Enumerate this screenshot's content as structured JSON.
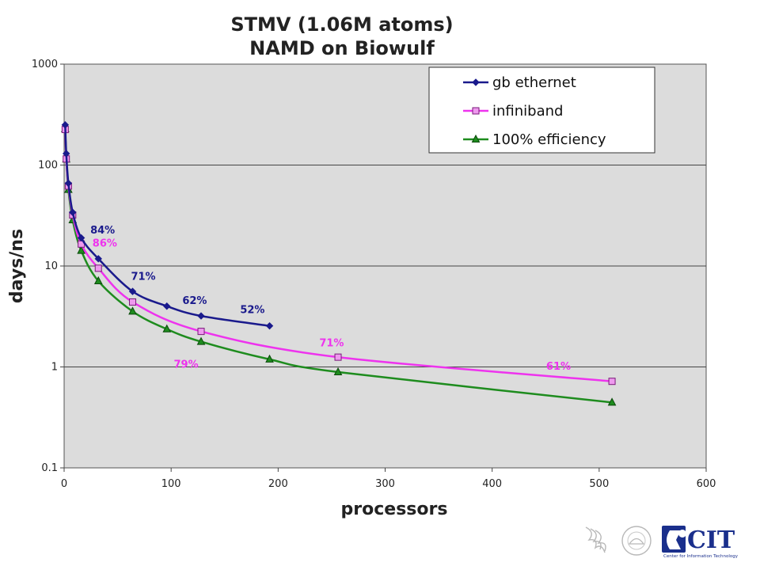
{
  "chart_data": {
    "type": "line",
    "title_line1": "STMV (1.06M atoms)",
    "title_line2": "NAMD on Biowulf",
    "xlabel": "processors",
    "ylabel": "days/ns",
    "xlim": [
      0,
      600
    ],
    "ylim": [
      0.1,
      1000
    ],
    "yscale": "log",
    "x_ticks": [
      "0",
      "100",
      "200",
      "300",
      "400",
      "500",
      "600"
    ],
    "y_ticks": [
      "0.1",
      "1",
      "10",
      "100",
      "1000"
    ],
    "grid": "horizontal",
    "legend_position": "top-right",
    "series": [
      {
        "name": "gb ethernet",
        "color": "#1a1a8c",
        "marker": "diamond",
        "x": [
          1,
          2,
          4,
          8,
          16,
          32,
          64,
          96,
          128,
          192
        ],
        "y": [
          250,
          130,
          66,
          34,
          19,
          11.8,
          5.6,
          4.0,
          3.2,
          2.55
        ]
      },
      {
        "name": "infiniband",
        "color": "#ee33ee",
        "marker": "square",
        "x": [
          1,
          2,
          4,
          8,
          16,
          32,
          64,
          128,
          256,
          512
        ],
        "y": [
          225,
          115,
          62,
          32,
          16.5,
          9.5,
          4.4,
          2.25,
          1.25,
          0.72
        ]
      },
      {
        "name": "100% efficiency",
        "color": "#1e8c1e",
        "marker": "triangle",
        "x": [
          1,
          2,
          4,
          8,
          16,
          32,
          64,
          96,
          128,
          192,
          256,
          512
        ],
        "y": [
          228,
          114,
          57,
          28.5,
          14.2,
          7.1,
          3.55,
          2.37,
          1.78,
          1.19,
          0.89,
          0.445
        ]
      }
    ],
    "annotations": [
      {
        "text": "84%",
        "series": "gb ethernet",
        "x": 36,
        "y": 21
      },
      {
        "text": "86%",
        "series": "infiniband",
        "x": 38,
        "y": 15.5
      },
      {
        "text": "71%",
        "series": "gb ethernet",
        "x": 74,
        "y": 7.3
      },
      {
        "text": "62%",
        "series": "gb ethernet",
        "x": 122,
        "y": 4.2
      },
      {
        "text": "52%",
        "series": "gb ethernet",
        "x": 176,
        "y": 3.4
      },
      {
        "text": "79%",
        "series": "infiniband",
        "x": 114,
        "y": 0.98
      },
      {
        "text": "71%",
        "series": "infiniband",
        "x": 250,
        "y": 1.6
      },
      {
        "text": "61%",
        "series": "infiniband",
        "x": 462,
        "y": 0.94
      }
    ]
  },
  "logos": {
    "cit_text": "CIT",
    "cit_subtitle": "Center for Information Technology",
    "cit_color": "#1a2f8c",
    "hhs_icon": "hhs-eagle-icon",
    "nih_icon": "nih-seal-icon"
  }
}
